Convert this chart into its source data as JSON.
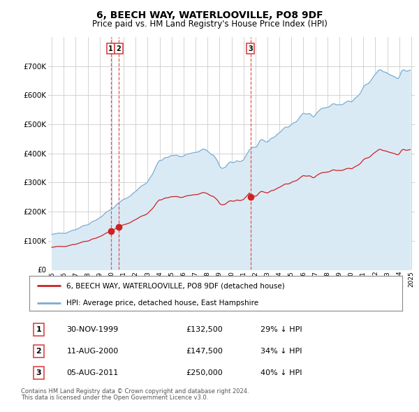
{
  "title": "6, BEECH WAY, WATERLOOVILLE, PO8 9DF",
  "subtitle": "Price paid vs. HM Land Registry's House Price Index (HPI)",
  "legend_line1": "6, BEECH WAY, WATERLOOVILLE, PO8 9DF (detached house)",
  "legend_line2": "HPI: Average price, detached house, East Hampshire",
  "footer1": "Contains HM Land Registry data © Crown copyright and database right 2024.",
  "footer2": "This data is licensed under the Open Government Licence v3.0.",
  "transactions": [
    {
      "num": 1,
      "date": "30-NOV-1999",
      "price": 132500,
      "hpi_diff": "29% ↓ HPI"
    },
    {
      "num": 2,
      "date": "11-AUG-2000",
      "price": 147500,
      "hpi_diff": "34% ↓ HPI"
    },
    {
      "num": 3,
      "date": "05-AUG-2011",
      "price": 250000,
      "hpi_diff": "40% ↓ HPI"
    }
  ],
  "hpi_color": "#7aadd4",
  "hpi_fill_color": "#daeaf5",
  "price_color": "#cc2222",
  "vline_color": "#dd4444",
  "grid_color": "#cccccc",
  "bg_color": "#ffffff",
  "ylim": [
    0,
    800000
  ],
  "yticks": [
    0,
    100000,
    200000,
    300000,
    400000,
    500000,
    600000,
    700000
  ],
  "t1_year": 1999.917,
  "t2_year": 2000.583,
  "t3_year": 2011.583
}
